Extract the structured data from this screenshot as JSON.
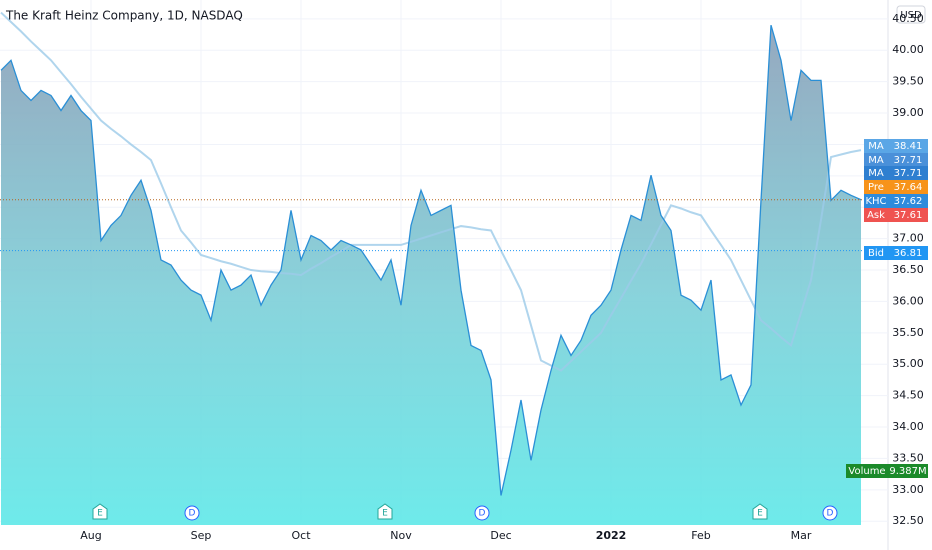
{
  "chart_data": {
    "type": "area",
    "title": "The Kraft Heinz Company, 1D, NASDAQ",
    "currency": "USD",
    "categories": [
      null,
      null,
      null,
      null,
      null,
      null,
      null,
      null,
      null,
      "Aug",
      null,
      null,
      null,
      null,
      null,
      null,
      null,
      null,
      null,
      null,
      "Sep",
      null,
      null,
      null,
      null,
      null,
      null,
      null,
      null,
      null,
      "Oct",
      null,
      null,
      null,
      null,
      null,
      null,
      null,
      null,
      null,
      "Nov",
      null,
      null,
      null,
      null,
      null,
      null,
      null,
      null,
      null,
      "Dec",
      null,
      null,
      null,
      null,
      null,
      null,
      null,
      null,
      null,
      null,
      "2022",
      null,
      null,
      null,
      null,
      null,
      null,
      null,
      null,
      "Feb",
      null,
      null,
      null,
      null,
      null,
      null,
      null,
      null,
      null,
      "Mar",
      null,
      null,
      null,
      null,
      null,
      null
    ],
    "series": [
      {
        "name": "KHC",
        "color": "#2a8fd6",
        "values": [
          39.68,
          39.84,
          39.36,
          39.2,
          39.36,
          39.28,
          39.04,
          39.28,
          39.04,
          38.88,
          36.97,
          37.21,
          37.37,
          37.69,
          37.93,
          37.45,
          36.66,
          36.58,
          36.34,
          36.18,
          36.1,
          35.7,
          36.5,
          36.18,
          36.26,
          36.42,
          35.94,
          36.26,
          36.5,
          37.45,
          36.66,
          37.05,
          36.97,
          36.82,
          36.97,
          36.9,
          36.82,
          36.58,
          36.34,
          36.66,
          35.94,
          37.21,
          37.77,
          37.37,
          37.45,
          37.53,
          36.18,
          35.3,
          35.22,
          34.75,
          32.91,
          33.63,
          34.43,
          33.47,
          34.27,
          34.9,
          35.46,
          35.14,
          35.38,
          35.78,
          35.94,
          36.18,
          36.82,
          37.37,
          37.29,
          38.01,
          37.37,
          37.13,
          36.1,
          36.02,
          35.86,
          36.34,
          34.75,
          34.83,
          34.35,
          34.67,
          37.61,
          40.4,
          39.84,
          38.88,
          39.68,
          39.52,
          39.52,
          37.61,
          37.77,
          37.69,
          37.62
        ]
      },
      {
        "name": "MA",
        "color": "#9ccbe8",
        "values": [
          40.6,
          40.45,
          40.3,
          40.14,
          39.99,
          39.84,
          39.65,
          39.46,
          39.26,
          39.07,
          38.88,
          38.75,
          38.63,
          38.5,
          38.38,
          38.25,
          37.88,
          37.5,
          37.13,
          36.94,
          36.74,
          36.69,
          36.64,
          36.6,
          36.55,
          36.5,
          36.48,
          36.47,
          36.45,
          36.44,
          36.42,
          36.52,
          36.61,
          36.71,
          36.8,
          36.9,
          36.9,
          36.9,
          36.9,
          36.9,
          36.9,
          36.95,
          37.0,
          37.05,
          37.1,
          37.15,
          37.2,
          37.18,
          37.15,
          37.13,
          36.81,
          36.5,
          36.18,
          35.62,
          35.06,
          34.98,
          34.9,
          35.05,
          35.2,
          35.35,
          35.5,
          35.78,
          36.05,
          36.33,
          36.6,
          36.91,
          37.22,
          37.53,
          37.48,
          37.42,
          37.37,
          37.13,
          36.9,
          36.66,
          36.34,
          36.02,
          35.7,
          35.57,
          35.43,
          35.3,
          35.82,
          36.34,
          37.3,
          38.3,
          38.34,
          38.38,
          38.41
        ]
      }
    ],
    "ylim": [
      32.44,
      40.8
    ],
    "yticks": [
      {
        "value": 32.5,
        "label": "32.50"
      },
      {
        "value": 33,
        "label": "33.00"
      },
      {
        "value": 33.5,
        "label": "33.50"
      },
      {
        "value": 34,
        "label": "34.00"
      },
      {
        "value": 34.5,
        "label": "34.50"
      },
      {
        "value": 35,
        "label": "35.00"
      },
      {
        "value": 35.5,
        "label": "35.50"
      },
      {
        "value": 36,
        "label": "36.00"
      },
      {
        "value": 36.5,
        "label": "36.50"
      },
      {
        "value": 37,
        "label": "37.00"
      },
      {
        "value": 37.5,
        "label": "37.50"
      },
      {
        "value": 38,
        "label": "38.00"
      },
      {
        "value": 38.5,
        "label": "38.50"
      },
      {
        "value": 39,
        "label": "39.00"
      },
      {
        "value": 39.5,
        "label": "39.50"
      },
      {
        "value": 40,
        "label": "40.00"
      },
      {
        "value": 40.5,
        "label": "40.50"
      }
    ],
    "grid": true,
    "badges": [
      {
        "label": "MA",
        "value": 37.71,
        "color": "#4a90d9"
      },
      {
        "label": "MA",
        "value": 37.71,
        "color": "#2f7fd0"
      },
      {
        "label": "Pre",
        "value": 37.64,
        "color": "#f7931a"
      },
      {
        "label": "Ask",
        "value": 37.61,
        "color": "#ef5350"
      },
      {
        "label": "Bid",
        "value": 36.81,
        "color": "#2196f3"
      },
      {
        "label": "Volume",
        "value": 9387000,
        "value_label": "9.387M",
        "color": "#1b8a2a"
      }
    ],
    "events": [
      "E",
      "D",
      "E",
      "D",
      "E",
      "D"
    ]
  }
}
